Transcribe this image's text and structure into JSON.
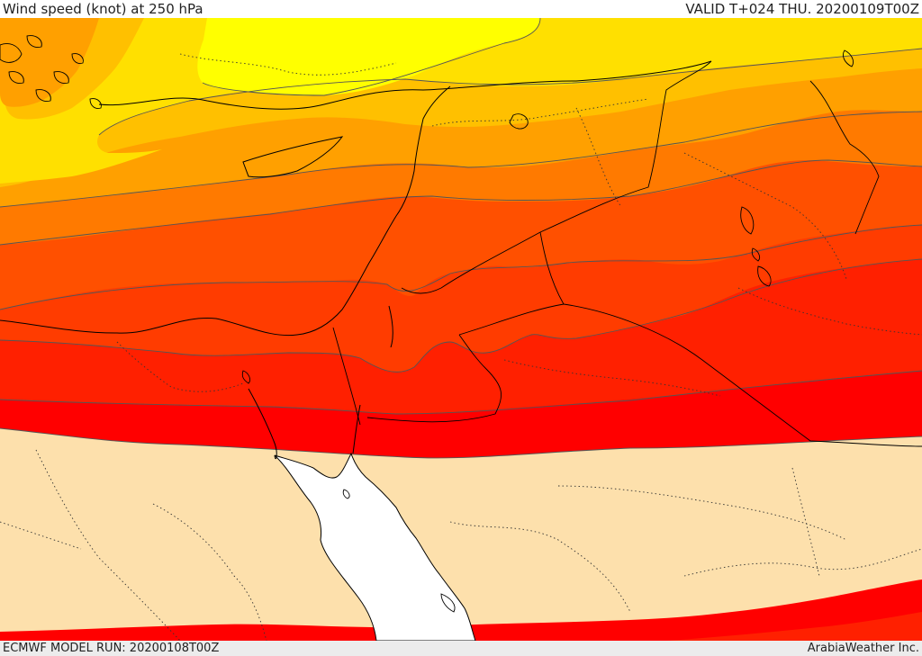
{
  "header": {
    "title": "Wind speed (knot) at 250 hPa",
    "valid": "VALID T+024 THU. 20200109T00Z"
  },
  "footer": {
    "model_run": "ECMWF MODEL RUN: 20200108T00Z",
    "credit": "ArabiaWeather Inc."
  },
  "colors": {
    "band_yellow": "#ffff00",
    "band_gold": "#ffe000",
    "band_amber": "#ffc000",
    "band_orange": "#ffa000",
    "band_dark_orange": "#ff7a00",
    "band_red_orange": "#ff5000",
    "band_vermilion": "#ff3c00",
    "band_scarlet": "#ff2000",
    "band_red": "#ff0000",
    "calm_area": "#fde0ac",
    "sea": "#ffffff"
  }
}
